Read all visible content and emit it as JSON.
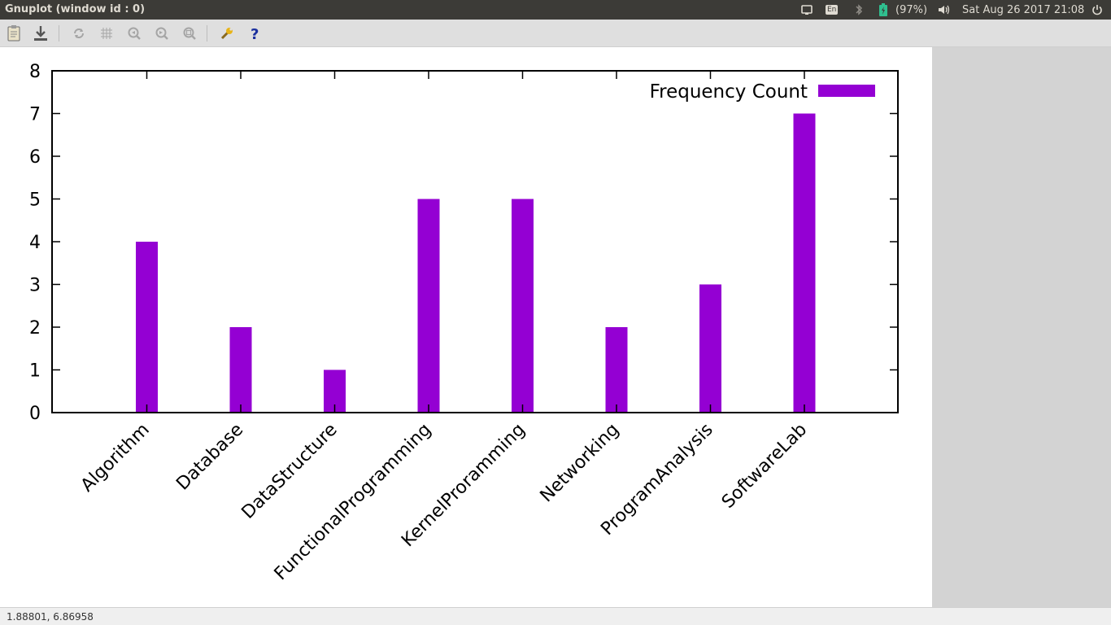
{
  "window": {
    "title": "Gnuplot (window id : 0)"
  },
  "tray": {
    "keyboard_layout": "En",
    "battery_text": "(97%)",
    "datetime": "Sat Aug 26 2017 21:08",
    "icons": [
      "screen-icon",
      "keyboard-layout-icon",
      "bluetooth-icon",
      "battery-icon",
      "volume-icon",
      "power-icon"
    ]
  },
  "toolbar": {
    "buttons": [
      "copy-clipboard",
      "export",
      "replot",
      "grid",
      "previous-zoom",
      "next-zoom",
      "autoscale",
      "configure",
      "help"
    ]
  },
  "status": {
    "coordinates": "1.88801,  6.86958"
  },
  "colors": {
    "bar": "#9400d3",
    "topbar": "#3c3b37"
  },
  "chart_data": {
    "type": "bar",
    "categories": [
      "Algorithm",
      "Database",
      "DataStructure",
      "FunctionalProgramming",
      "KernelProramming",
      "Networking",
      "ProgramAnalysis",
      "SoftwareLab"
    ],
    "series": [
      {
        "name": "Frequency Count",
        "values": [
          4,
          2,
          1,
          5,
          5,
          2,
          3,
          7
        ]
      }
    ],
    "ylim": [
      0,
      8
    ],
    "yticks": [
      "0",
      "1",
      "2",
      "3",
      "4",
      "5",
      "6",
      "7",
      "8"
    ],
    "legend_position": "top-right",
    "grid": false
  }
}
